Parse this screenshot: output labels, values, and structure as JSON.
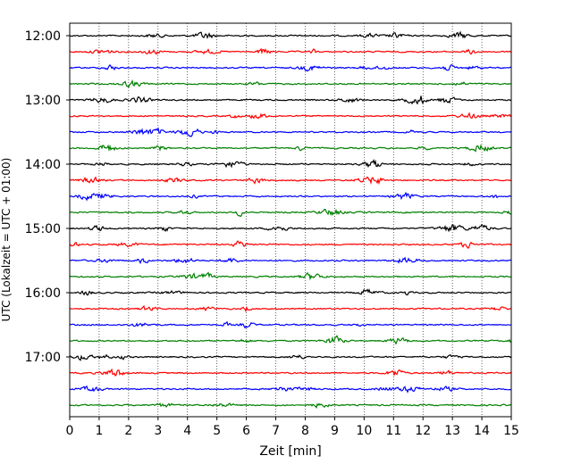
{
  "chart_data": {
    "type": "line",
    "title": "",
    "xlabel": "Zeit  [min]",
    "ylabel": "UTC (Lokalzeit = UTC + 01:00)",
    "xlim": [
      0,
      15
    ],
    "x_ticks": [
      "0",
      "1",
      "2",
      "3",
      "4",
      "5",
      "6",
      "7",
      "8",
      "9",
      "10",
      "11",
      "12",
      "13",
      "14",
      "15"
    ],
    "y_ticks": [
      "12:00",
      "13:00",
      "14:00",
      "15:00",
      "16:00",
      "17:00"
    ],
    "grid": "vertical dotted at each minute",
    "trace_interval_minutes": 15,
    "trace_start_times": [
      "12:00",
      "12:15",
      "12:30",
      "12:45",
      "13:00",
      "13:15",
      "13:30",
      "13:45",
      "14:00",
      "14:15",
      "14:30",
      "14:45",
      "15:00",
      "15:15",
      "15:30",
      "15:45",
      "16:00",
      "16:15",
      "16:30",
      "16:45",
      "17:00",
      "17:15",
      "17:30",
      "17:45"
    ],
    "color_cycle": [
      "#000000",
      "#ff0000",
      "#0000ff",
      "#008000"
    ]
  }
}
